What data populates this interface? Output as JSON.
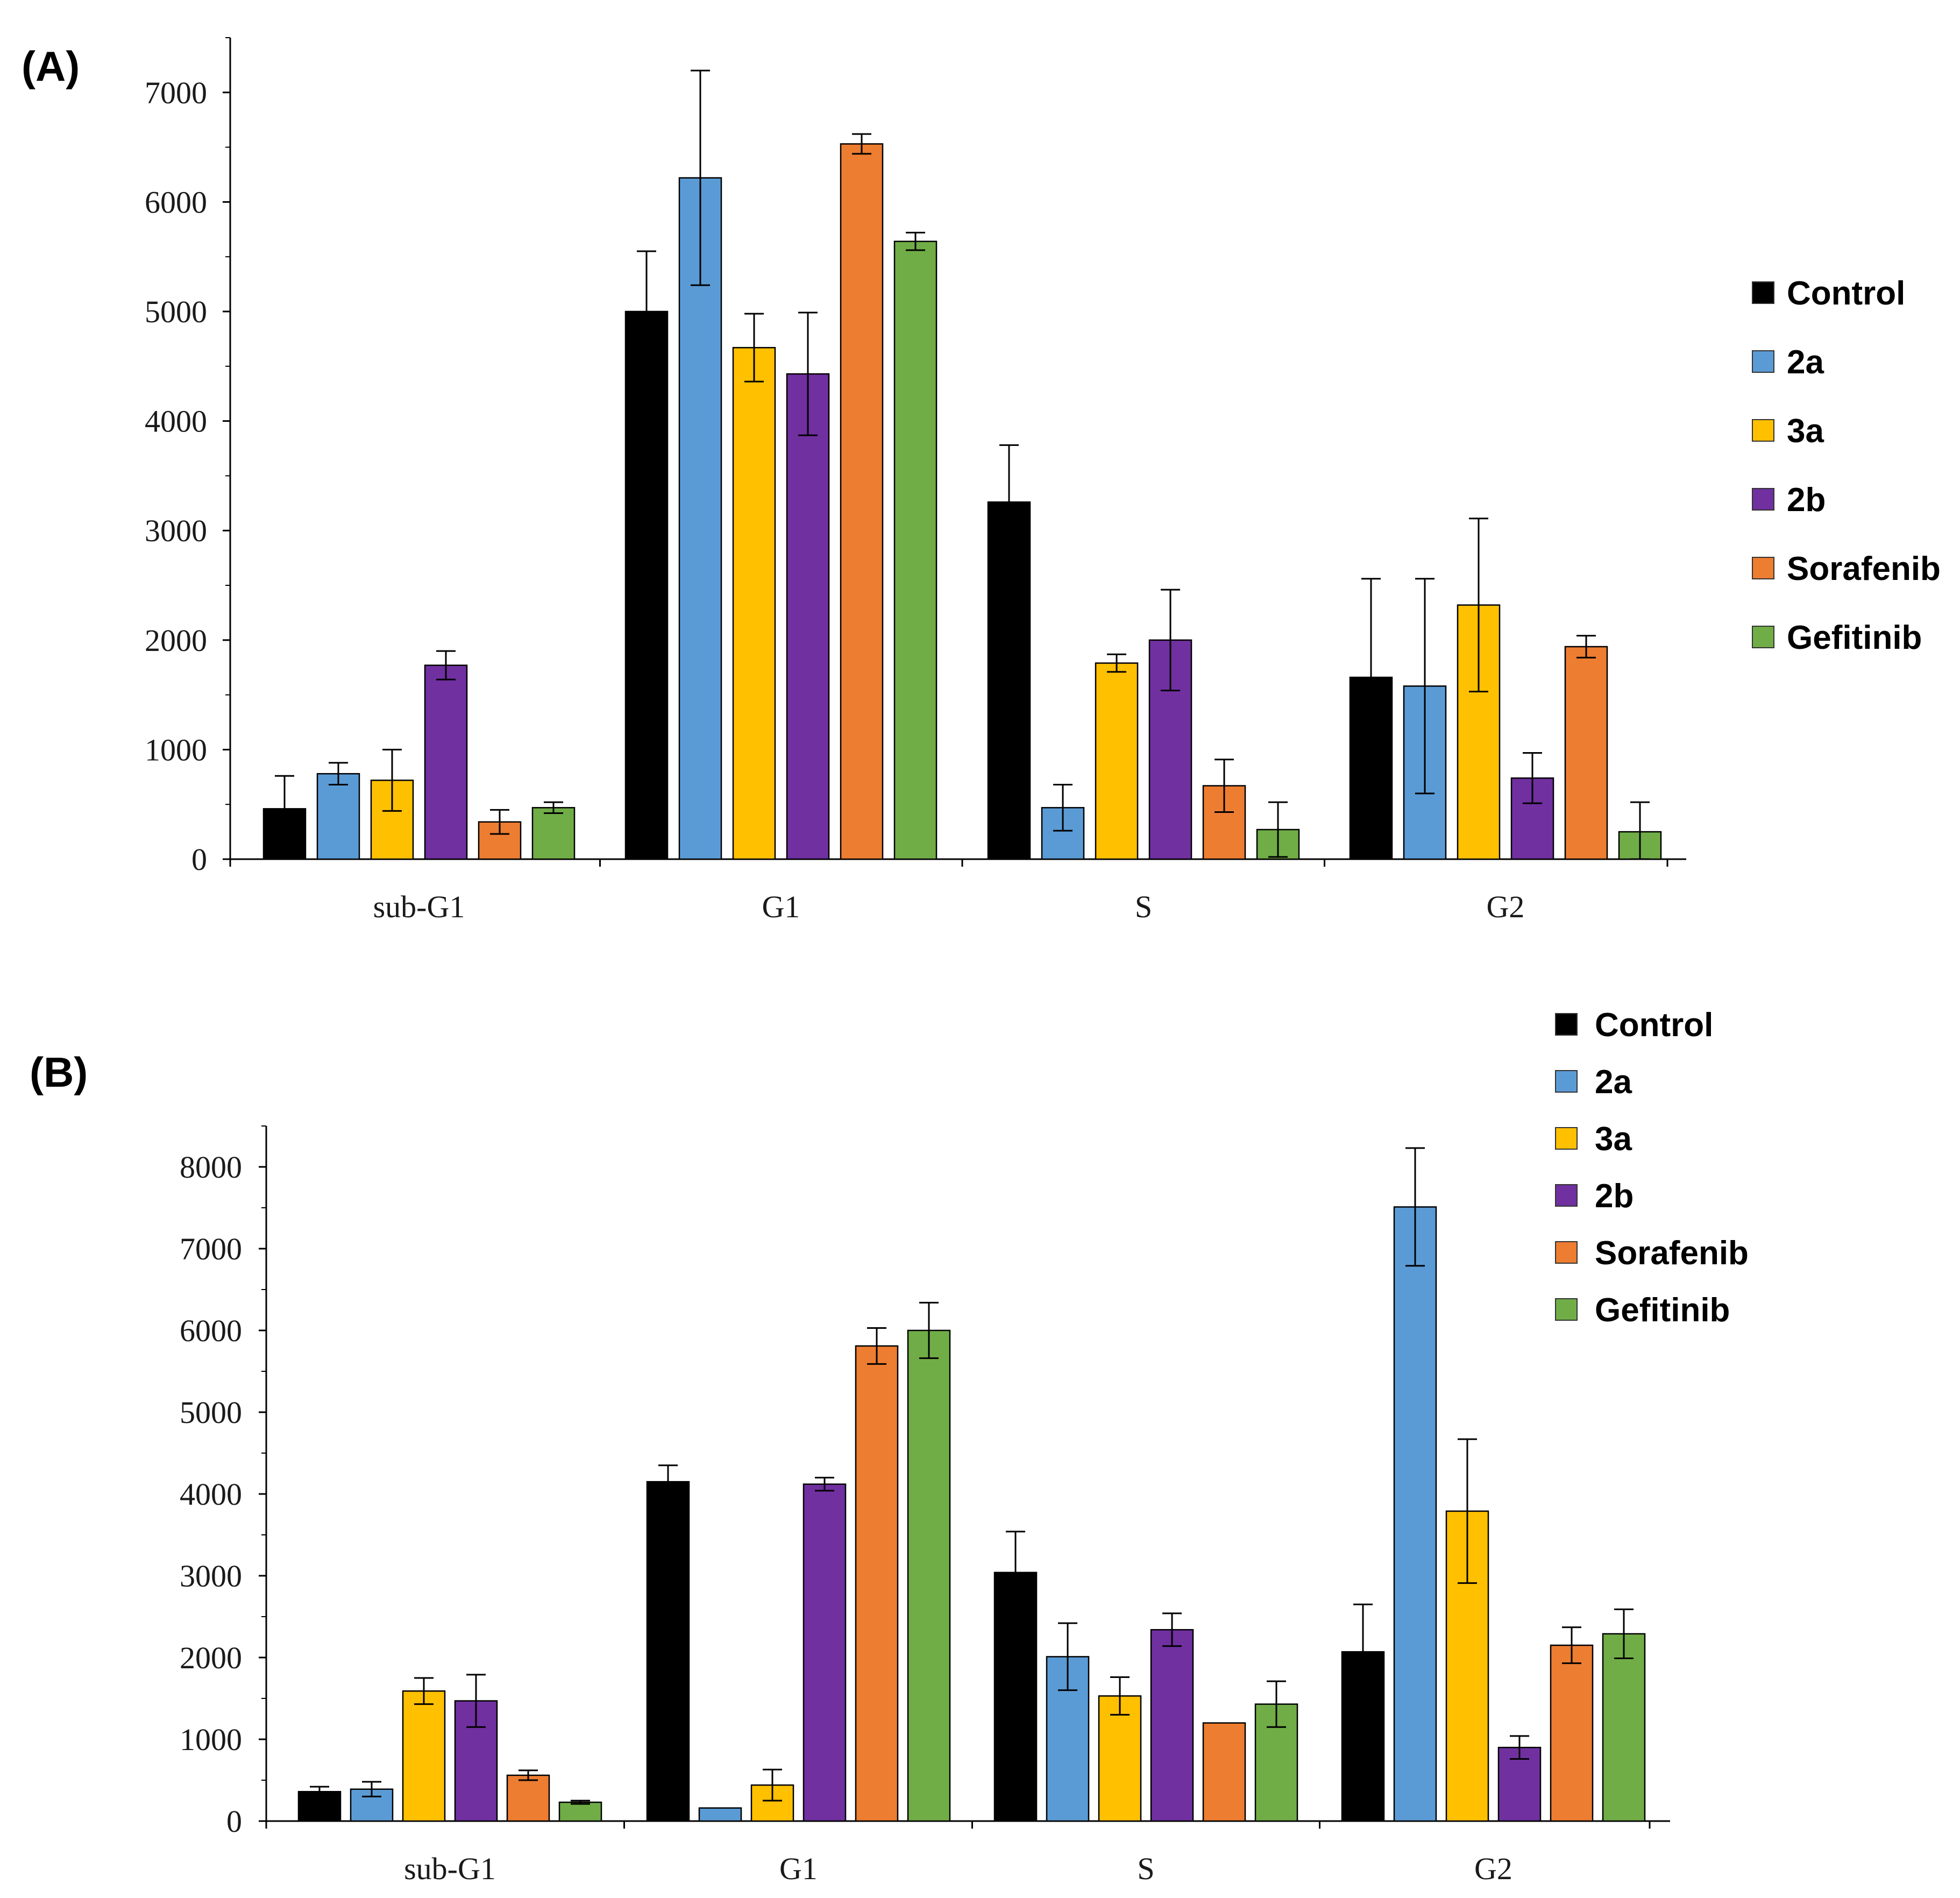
{
  "chart_data": [
    {
      "type": "bar",
      "panel_label": "(A)",
      "categories": [
        "sub-G1",
        "G1",
        "S",
        "G2"
      ],
      "ylim": [
        0,
        7500
      ],
      "yticks": [
        "0",
        "1000",
        "2000",
        "3000",
        "4000",
        "5000",
        "6000",
        "7000"
      ],
      "legend": [
        "Control",
        "2a",
        "3a",
        "2b",
        "Sorafenib",
        "Gefitinib"
      ],
      "legend_position": "right",
      "series": [
        {
          "name": "Control",
          "color": "#000000",
          "values": [
            460,
            5000,
            3260,
            1660
          ],
          "errors": [
            300,
            550,
            520,
            900
          ]
        },
        {
          "name": "2a",
          "color": "#5b9bd5",
          "values": [
            780,
            6220,
            470,
            1580
          ],
          "errors": [
            100,
            980,
            210,
            980
          ]
        },
        {
          "name": "3a",
          "color": "#ffc000",
          "values": [
            720,
            4670,
            1790,
            2320
          ],
          "errors": [
            280,
            310,
            80,
            790
          ]
        },
        {
          "name": "2b",
          "color": "#7030a0",
          "values": [
            1770,
            4430,
            2000,
            740
          ],
          "errors": [
            130,
            560,
            460,
            230
          ]
        },
        {
          "name": "Sorafenib",
          "color": "#ed7d31",
          "values": [
            340,
            6530,
            670,
            1940
          ],
          "errors": [
            110,
            90,
            240,
            100
          ]
        },
        {
          "name": "Gefitinib",
          "color": "#70ad47",
          "values": [
            470,
            5640,
            270,
            250
          ],
          "errors": [
            50,
            80,
            250,
            270
          ]
        }
      ]
    },
    {
      "type": "bar",
      "panel_label": "(B)",
      "categories": [
        "sub-G1",
        "G1",
        "S",
        "G2"
      ],
      "ylim": [
        0,
        8500
      ],
      "yticks": [
        "0",
        "1000",
        "2000",
        "3000",
        "4000",
        "5000",
        "6000",
        "7000",
        "8000"
      ],
      "legend": [
        "Control",
        "2a",
        "3a",
        "2b",
        "Sorafenib",
        "Gefitinib"
      ],
      "legend_position": "top-right",
      "series": [
        {
          "name": "Control",
          "color": "#000000",
          "values": [
            360,
            4150,
            3040,
            2070
          ],
          "errors": [
            60,
            200,
            500,
            580
          ]
        },
        {
          "name": "2a",
          "color": "#5b9bd5",
          "values": [
            390,
            160,
            2010,
            7510
          ],
          "errors": [
            90,
            0,
            410,
            720
          ]
        },
        {
          "name": "3a",
          "color": "#ffc000",
          "values": [
            1590,
            440,
            1530,
            3790
          ],
          "errors": [
            160,
            190,
            230,
            880
          ]
        },
        {
          "name": "2b",
          "color": "#7030a0",
          "values": [
            1470,
            4120,
            2340,
            900
          ],
          "errors": [
            320,
            80,
            200,
            140
          ]
        },
        {
          "name": "Sorafenib",
          "color": "#ed7d31",
          "values": [
            560,
            5810,
            1200,
            2150
          ],
          "errors": [
            60,
            220,
            0,
            220
          ]
        },
        {
          "name": "Gefitinib",
          "color": "#70ad47",
          "values": [
            230,
            6000,
            1430,
            2290
          ],
          "errors": [
            20,
            340,
            280,
            300
          ]
        }
      ]
    }
  ]
}
